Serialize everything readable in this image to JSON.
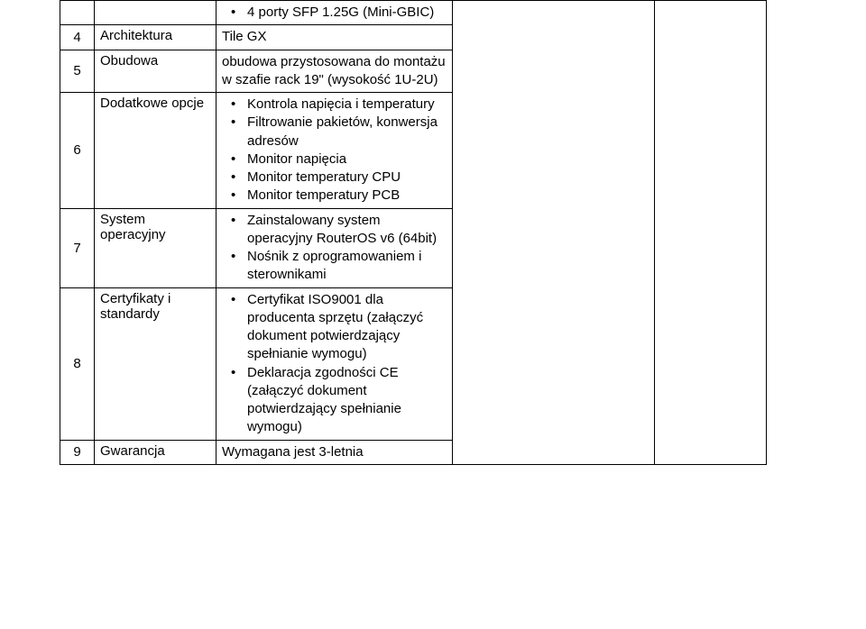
{
  "table": {
    "rows": [
      {
        "num": "",
        "c2": "",
        "c3_type": "ul",
        "c3_items": [
          "4 porty SFP 1.25G (Mini-GBIC)"
        ]
      },
      {
        "num": "4",
        "c2": "Architektura",
        "c3_type": "plain",
        "c3_text": "Tile GX"
      },
      {
        "num": "5",
        "c2": "Obudowa",
        "c3_type": "plain",
        "c3_text": "obudowa przystosowana do montażu w szafie rack 19\" (wysokość 1U-2U)"
      },
      {
        "num": "6",
        "c2": "Dodatkowe opcje",
        "c3_type": "ul",
        "c3_items": [
          "Kontrola napięcia i temperatury",
          "Filtrowanie pakietów, konwersja adresów",
          "Monitor napięcia",
          "Monitor temperatury CPU",
          "Monitor temperatury PCB"
        ]
      },
      {
        "num": "7",
        "c2": "System operacyjny",
        "c3_type": "ul",
        "c3_items": [
          "Zainstalowany system operacyjny RouterOS v6 (64bit)",
          "Nośnik z oprogramowaniem i sterownikami"
        ]
      },
      {
        "num": "8",
        "c2": "Certyfikaty i standardy",
        "c3_type": "ul",
        "c3_items": [
          "Certyfikat ISO9001 dla producenta sprzętu (załączyć dokument potwierdzający spełnianie wymogu)",
          "Deklaracja zgodności CE (załączyć dokument potwierdzający spełnianie wymogu)"
        ]
      },
      {
        "num": "9",
        "c2": "Gwarancja",
        "c3_type": "plain",
        "c3_text": "Wymagana jest 3-letnia"
      }
    ],
    "col4_rowspan": 7,
    "col5_rowspan": 7
  },
  "colors": {
    "border": "#000000",
    "text": "#000000",
    "background": "#ffffff"
  },
  "fonts": {
    "family": "Verdana",
    "size_pt": 11
  }
}
